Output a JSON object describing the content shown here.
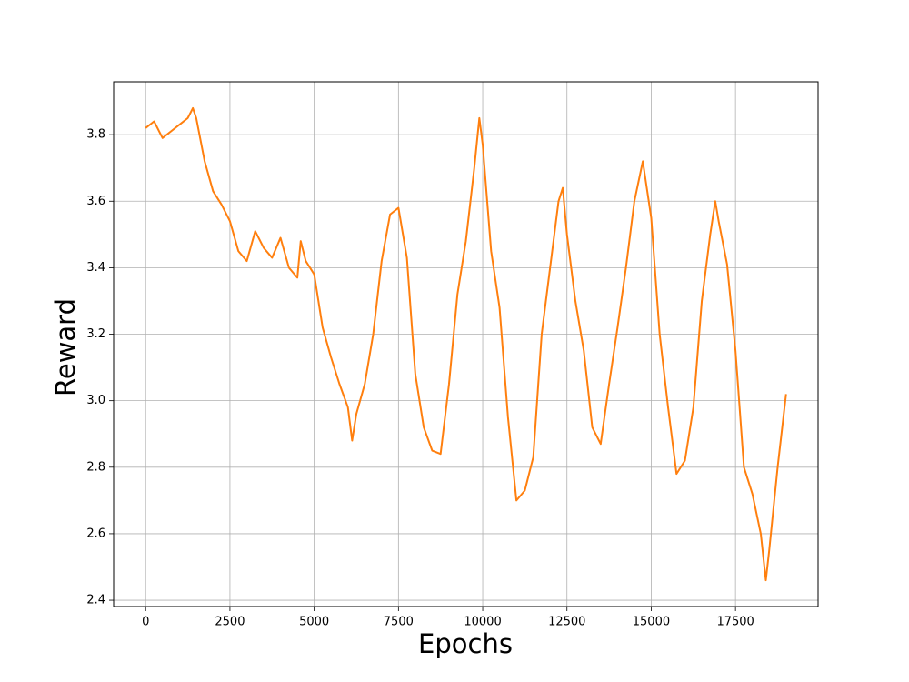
{
  "chart_data": {
    "type": "line",
    "x_label": "Epochs",
    "y_label": "Reward",
    "x": [
      0,
      250,
      500,
      750,
      1000,
      1250,
      1400,
      1500,
      1750,
      2000,
      2250,
      2500,
      2750,
      3000,
      3250,
      3500,
      3750,
      4000,
      4250,
      4500,
      4600,
      4750,
      5000,
      5250,
      5500,
      5750,
      6000,
      6125,
      6250,
      6500,
      6750,
      7000,
      7250,
      7500,
      7750,
      8000,
      8250,
      8500,
      8750,
      9000,
      9250,
      9500,
      9750,
      9900,
      10000,
      10250,
      10500,
      10750,
      11000,
      11250,
      11500,
      11750,
      12000,
      12250,
      12375,
      12500,
      12750,
      13000,
      13250,
      13500,
      13750,
      14000,
      14250,
      14500,
      14750,
      15000,
      15250,
      15500,
      15750,
      16000,
      16250,
      16500,
      16750,
      16900,
      17000,
      17250,
      17500,
      17750,
      18000,
      18250,
      18400,
      18500,
      18750,
      19000
    ],
    "series": [
      {
        "color": "#ff7f0e",
        "values": [
          3.82,
          3.84,
          3.79,
          3.81,
          3.83,
          3.85,
          3.88,
          3.85,
          3.72,
          3.63,
          3.59,
          3.54,
          3.45,
          3.42,
          3.51,
          3.46,
          3.43,
          3.49,
          3.4,
          3.37,
          3.48,
          3.42,
          3.38,
          3.22,
          3.13,
          3.05,
          2.98,
          2.88,
          2.96,
          3.05,
          3.2,
          3.42,
          3.56,
          3.58,
          3.43,
          3.08,
          2.92,
          2.85,
          2.84,
          3.05,
          3.32,
          3.48,
          3.7,
          3.85,
          3.77,
          3.45,
          3.28,
          2.95,
          2.7,
          2.73,
          2.83,
          3.2,
          3.4,
          3.6,
          3.64,
          3.5,
          3.3,
          3.15,
          2.92,
          2.87,
          3.05,
          3.22,
          3.4,
          3.6,
          3.72,
          3.55,
          3.2,
          2.98,
          2.78,
          2.82,
          2.98,
          3.3,
          3.5,
          3.6,
          3.54,
          3.41,
          3.15,
          2.8,
          2.72,
          2.6,
          2.46,
          2.55,
          2.8,
          3.02
        ]
      }
    ],
    "xlim": [
      -950,
      19950
    ],
    "ylim": [
      2.381,
      3.959
    ],
    "xticks": [
      0,
      2500,
      5000,
      7500,
      10000,
      12500,
      15000,
      17500
    ],
    "yticks": [
      2.4,
      2.6,
      2.8,
      {
        "value": 3,
        "label": "3.0"
      },
      3.2,
      3.4,
      3.6,
      3.8
    ],
    "grid": true
  }
}
